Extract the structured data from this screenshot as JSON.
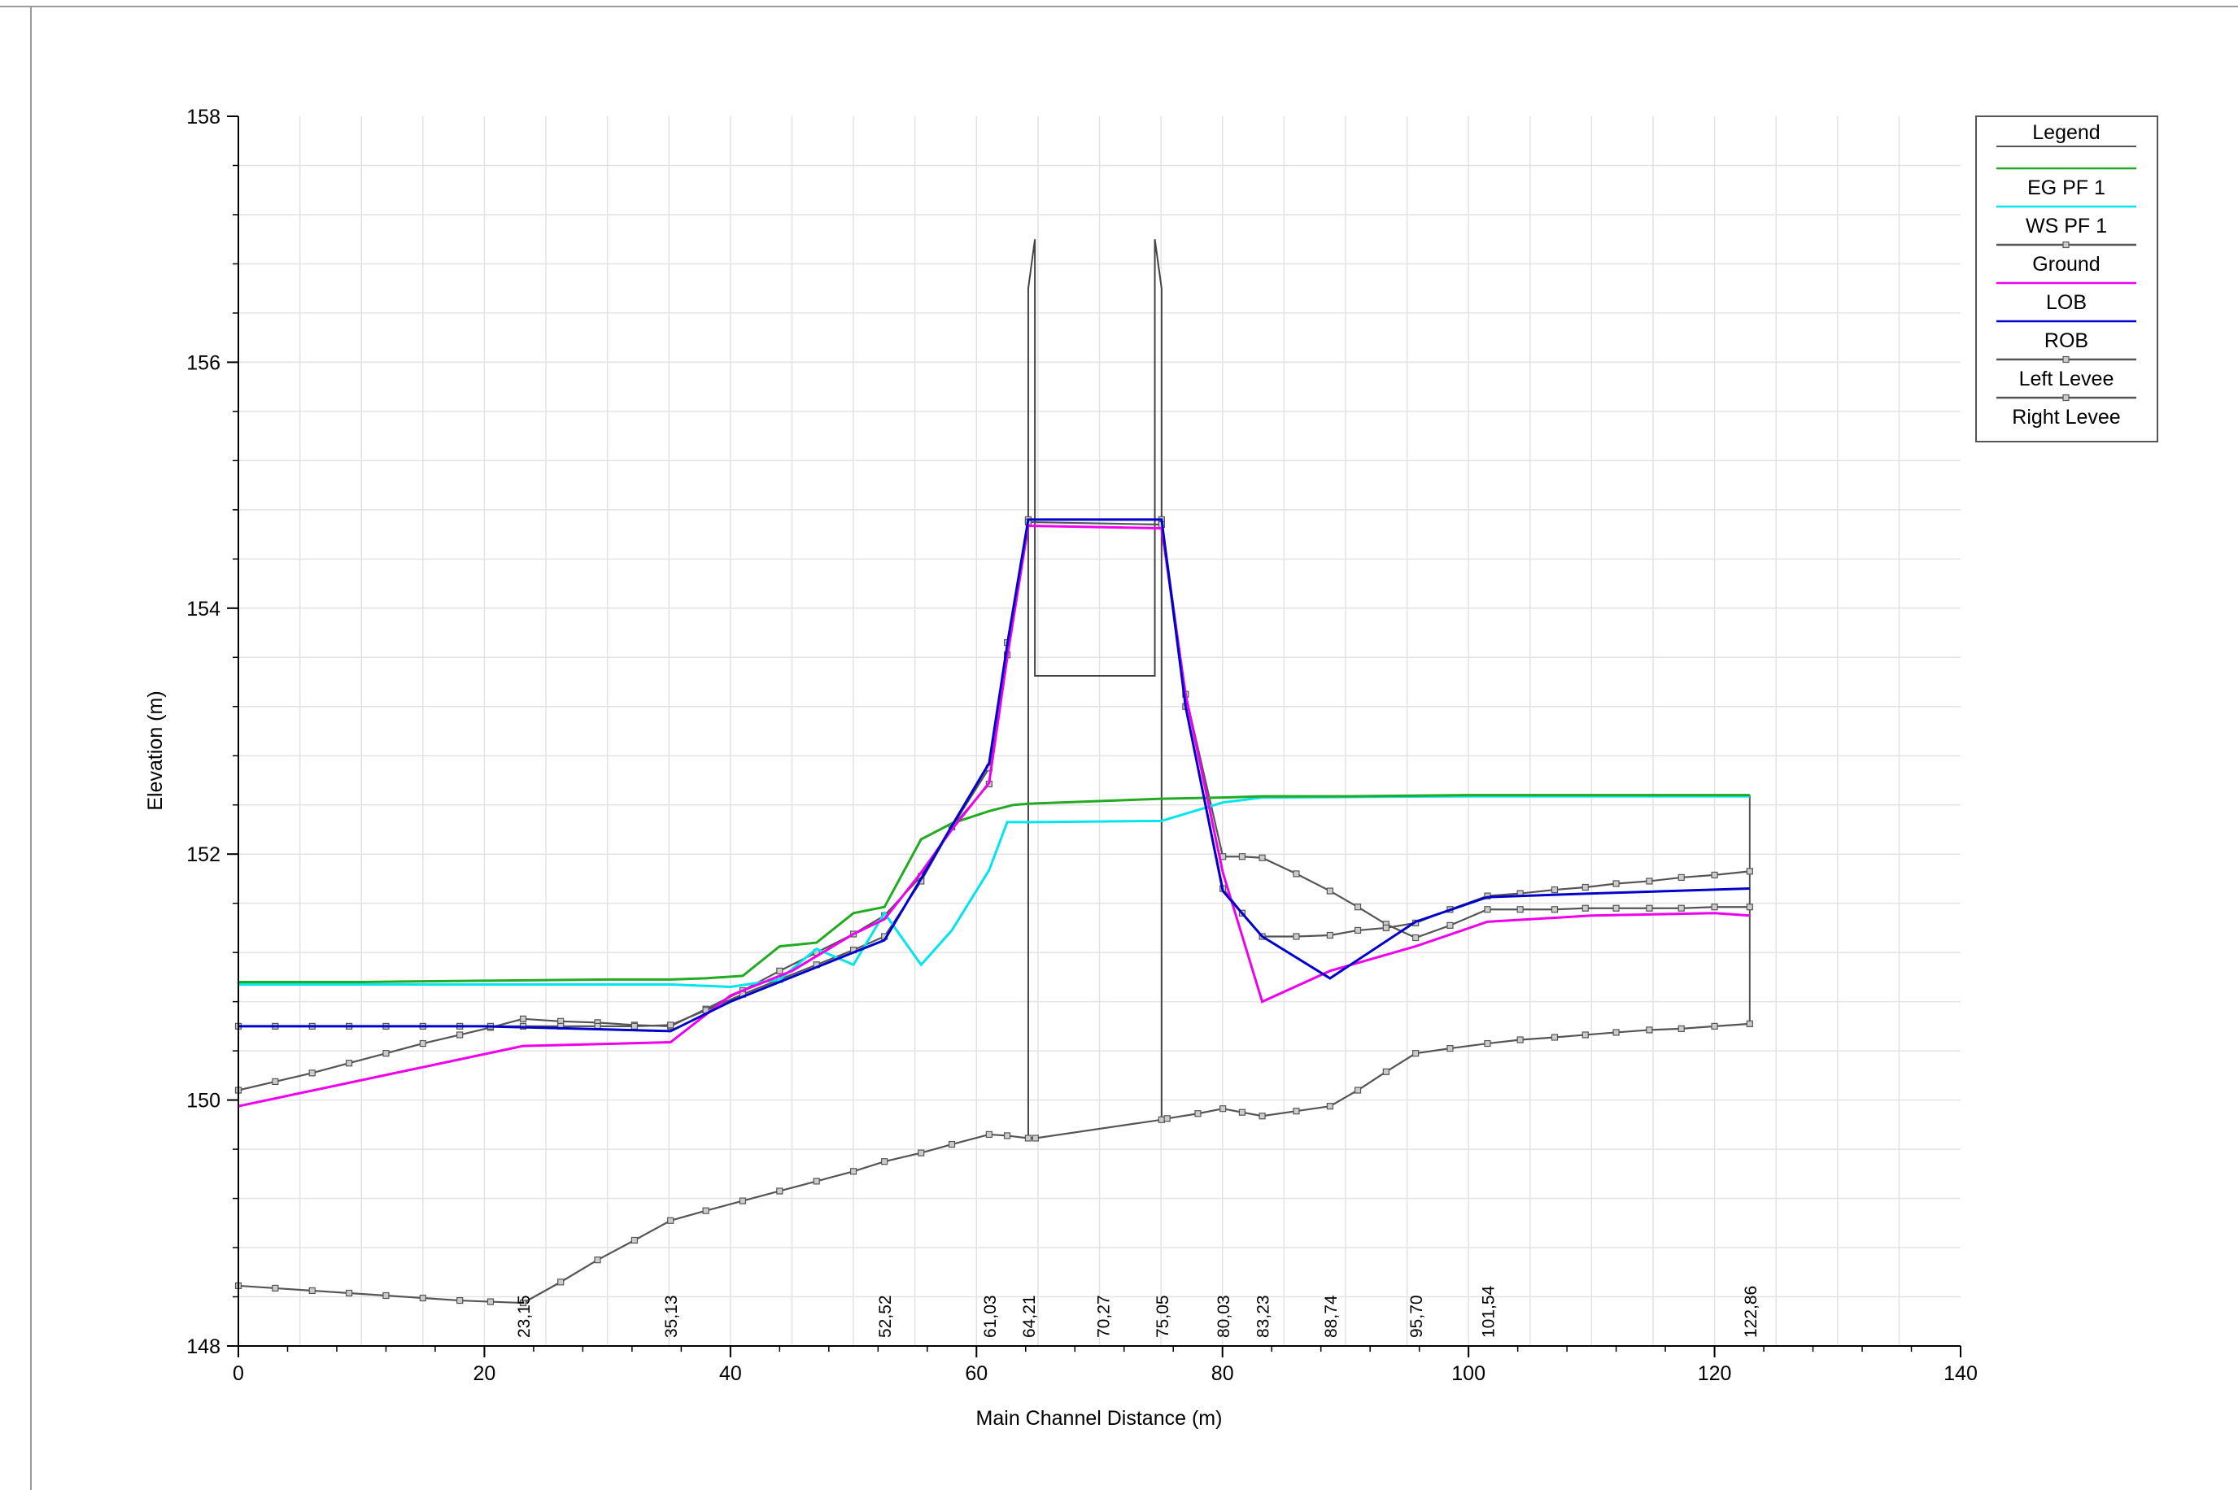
{
  "chart_data": {
    "type": "line",
    "xlabel": "Main Channel Distance (m)",
    "ylabel": "Elevation (m)",
    "xlim": [
      0,
      140
    ],
    "ylim": [
      148,
      158
    ],
    "x_ticks": [
      0,
      20,
      40,
      60,
      80,
      100,
      120,
      140
    ],
    "y_ticks": [
      148,
      150,
      152,
      154,
      156,
      158
    ],
    "grid": true,
    "legend": {
      "title": "Legend",
      "placement": "top-right outside plot",
      "entries": [
        {
          "label": "EG  PF 1",
          "color": "#22aa22",
          "marker": false
        },
        {
          "label": "WS  PF 1",
          "color": "#00e5ee",
          "marker": false
        },
        {
          "label": "Ground",
          "color": "#555555",
          "marker": true
        },
        {
          "label": "LOB",
          "color": "#ee00ee",
          "marker": false
        },
        {
          "label": "ROB",
          "color": "#0000cc",
          "marker": false
        },
        {
          "label": "Left Levee",
          "color": "#555555",
          "marker": true
        },
        {
          "label": "Right Levee",
          "color": "#555555",
          "marker": true
        }
      ]
    },
    "station_labels": [
      {
        "x": 23.15,
        "label": "23,15"
      },
      {
        "x": 35.13,
        "label": "35,13"
      },
      {
        "x": 52.52,
        "label": "52,52"
      },
      {
        "x": 61.03,
        "label": "61,03"
      },
      {
        "x": 64.21,
        "label": "64,21"
      },
      {
        "x": 70.27,
        "label": "70,27"
      },
      {
        "x": 75.05,
        "label": "75,05"
      },
      {
        "x": 80.03,
        "label": "80,03"
      },
      {
        "x": 83.23,
        "label": "83,23"
      },
      {
        "x": 88.74,
        "label": "88,74"
      },
      {
        "x": 95.7,
        "label": "95,70"
      },
      {
        "x": 101.54,
        "label": "101,54"
      },
      {
        "x": 122.86,
        "label": "122,86"
      }
    ],
    "bridge": {
      "left": 64.21,
      "right": 75.05,
      "deck_top": 157.0,
      "deck_bottom": 153.45,
      "x": [
        64.21,
        64.21,
        64.75,
        64.75,
        74.5,
        74.5,
        75.05,
        75.05
      ],
      "y": [
        149.7,
        156.6,
        157.0,
        153.45,
        153.45,
        157.0,
        156.6,
        149.85
      ]
    },
    "series": [
      {
        "name": "EG  PF 1",
        "color": "#22aa22",
        "marker": false,
        "x": [
          0,
          10,
          20,
          30,
          35.13,
          38,
          41,
          44,
          47,
          50,
          52.52,
          55.5,
          58,
          61.03,
          63,
          64.21,
          75.05,
          80.03,
          83.23,
          90,
          100,
          110,
          122.86
        ],
        "y": [
          150.96,
          150.96,
          150.97,
          150.98,
          150.98,
          150.99,
          151.01,
          151.25,
          151.28,
          151.52,
          151.57,
          152.12,
          152.25,
          152.35,
          152.4,
          152.41,
          152.45,
          152.46,
          152.47,
          152.47,
          152.48,
          152.48,
          152.48
        ]
      },
      {
        "name": "WS  PF 1",
        "color": "#00e5ee",
        "marker": false,
        "x": [
          0,
          20,
          35.13,
          40,
          44,
          47,
          50,
          52.52,
          55.5,
          58,
          61.03,
          62.5,
          64.21,
          75.05,
          80.03,
          83.23,
          100,
          122.86
        ],
        "y": [
          150.94,
          150.94,
          150.94,
          150.92,
          150.98,
          151.23,
          151.1,
          151.52,
          151.1,
          151.38,
          151.87,
          152.26,
          152.26,
          152.27,
          152.42,
          152.46,
          152.47,
          152.47
        ]
      },
      {
        "name": "LOB",
        "color": "#ee00ee",
        "marker": false,
        "x": [
          0,
          23.15,
          35.13,
          40,
          45,
          50,
          52.52,
          55.5,
          58,
          61.03,
          62.5,
          64.21,
          75.05,
          77,
          80.03,
          83.23,
          88.74,
          95.7,
          101.54,
          110,
          120,
          122.86
        ],
        "y": [
          149.95,
          150.44,
          150.47,
          150.85,
          151.05,
          151.35,
          151.47,
          151.85,
          152.2,
          152.58,
          153.6,
          154.67,
          154.65,
          153.3,
          151.85,
          150.8,
          151.05,
          151.25,
          151.45,
          151.5,
          151.52,
          151.5
        ]
      },
      {
        "name": "ROB",
        "color": "#0000cc",
        "marker": false,
        "x": [
          0,
          20,
          35.13,
          40,
          45,
          50,
          52.52,
          55.5,
          58,
          61.03,
          62.5,
          64.21,
          75.05,
          77,
          80.03,
          83.23,
          88.74,
          95.7,
          101.54,
          110,
          122.86
        ],
        "y": [
          150.6,
          150.6,
          150.56,
          150.8,
          151.0,
          151.2,
          151.3,
          151.8,
          152.23,
          152.74,
          153.7,
          154.72,
          154.72,
          153.2,
          151.7,
          151.33,
          150.99,
          151.45,
          151.65,
          151.68,
          151.72
        ]
      },
      {
        "name": "Ground",
        "color": "#555555",
        "marker": true,
        "x": [
          0,
          3,
          6,
          9,
          12,
          15,
          18,
          20.5,
          23.15,
          26.2,
          29.2,
          32.2,
          35.13,
          38,
          41,
          44,
          47,
          50,
          52.52,
          55.5,
          58,
          61.03,
          62.5,
          64.21,
          64.8,
          75.05,
          75.5,
          78,
          80.03,
          81.6,
          83.23,
          86,
          88.74,
          91,
          93.3,
          95.7,
          98.5,
          101.54,
          104.2,
          107,
          109.5,
          112,
          114.7,
          117.3,
          120,
          122.86
        ],
        "y": [
          148.49,
          148.47,
          148.45,
          148.43,
          148.41,
          148.39,
          148.37,
          148.36,
          148.35,
          148.52,
          148.7,
          148.86,
          149.02,
          149.1,
          149.18,
          149.26,
          149.34,
          149.42,
          149.5,
          149.57,
          149.64,
          149.72,
          149.71,
          149.69,
          149.69,
          149.84,
          149.85,
          149.89,
          149.93,
          149.9,
          149.87,
          149.91,
          149.95,
          150.08,
          150.23,
          150.38,
          150.42,
          150.46,
          150.49,
          150.51,
          150.53,
          150.55,
          150.57,
          150.58,
          150.6,
          150.62
        ]
      },
      {
        "name": "Left Levee",
        "color": "#555555",
        "marker": true,
        "x": [
          0,
          3,
          6,
          9,
          12,
          15,
          18,
          20.5,
          23.15,
          26.2,
          29.2,
          32.2,
          35.13,
          38,
          41,
          44,
          47,
          50,
          52.52,
          55.5,
          58,
          61.03,
          62.5,
          64.21,
          75.05,
          77,
          80.03,
          81.6,
          83.23,
          86,
          88.74,
          91,
          93.3,
          95.7,
          98.5,
          101.54,
          104.2,
          107,
          109.5,
          112,
          114.7,
          117.3,
          120,
          122.86
        ],
        "y": [
          150.08,
          150.15,
          150.22,
          150.3,
          150.38,
          150.46,
          150.53,
          150.59,
          150.66,
          150.64,
          150.63,
          150.61,
          150.6,
          150.74,
          150.89,
          151.05,
          151.2,
          151.35,
          151.5,
          151.82,
          152.22,
          152.57,
          153.72,
          154.72,
          154.72,
          153.3,
          151.98,
          151.98,
          151.97,
          151.84,
          151.7,
          151.57,
          151.43,
          151.32,
          151.42,
          151.55,
          151.55,
          151.55,
          151.56,
          151.56,
          151.56,
          151.56,
          151.57,
          151.57
        ]
      },
      {
        "name": "Right Levee",
        "color": "#555555",
        "marker": true,
        "x": [
          0,
          3,
          6,
          9,
          12,
          15,
          18,
          20.5,
          23.15,
          26.2,
          29.2,
          32.2,
          35.13,
          38,
          41,
          44,
          47,
          50,
          52.52,
          55.5,
          58,
          61.03,
          62.5,
          64.21,
          75.05,
          77,
          80.03,
          81.6,
          83.23,
          86,
          88.74,
          91,
          93.3,
          95.7,
          98.5,
          101.54,
          104.2,
          107,
          109.5,
          112,
          114.7,
          117.3,
          120,
          122.86
        ],
        "y": [
          150.6,
          150.6,
          150.6,
          150.6,
          150.6,
          150.6,
          150.6,
          150.6,
          150.6,
          150.6,
          150.6,
          150.6,
          150.61,
          150.73,
          150.86,
          150.98,
          151.1,
          151.22,
          151.33,
          151.78,
          152.22,
          152.7,
          153.62,
          154.7,
          154.68,
          153.2,
          151.72,
          151.52,
          151.33,
          151.33,
          151.34,
          151.38,
          151.4,
          151.44,
          151.55,
          151.66,
          151.68,
          151.71,
          151.73,
          151.76,
          151.78,
          151.81,
          151.83,
          151.86
        ]
      }
    ]
  }
}
